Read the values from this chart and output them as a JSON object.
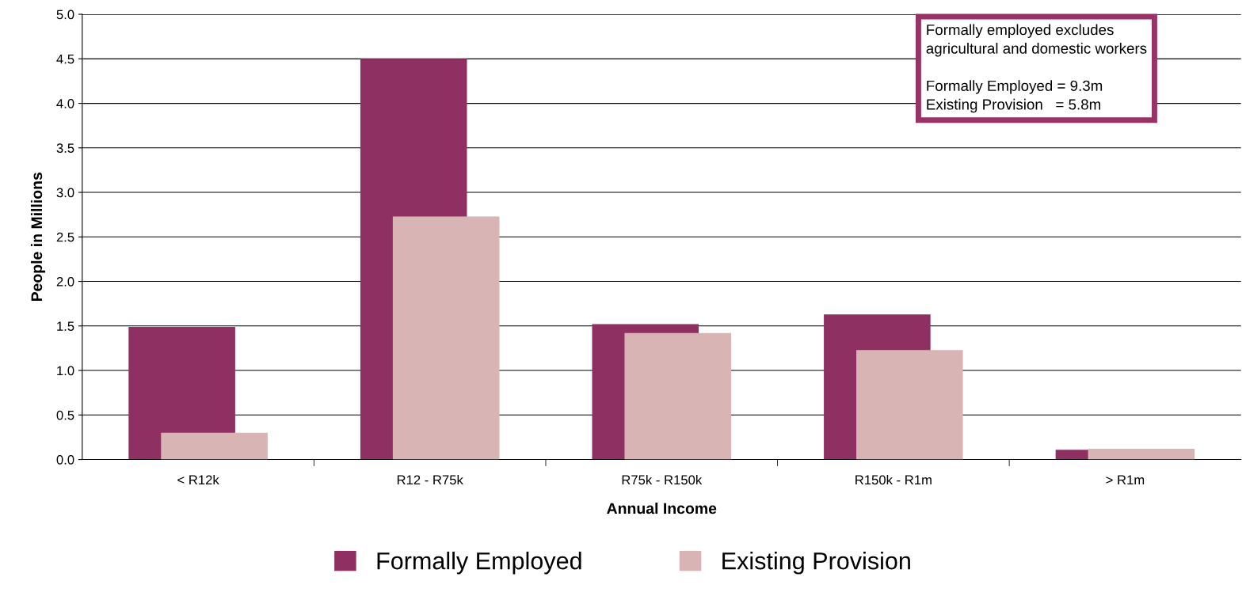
{
  "chart_data": {
    "type": "bar",
    "xlabel": "Annual Income",
    "ylabel": "People in Millions",
    "categories": [
      "< R12k",
      "R12 - R75k",
      "R75k - R150k",
      "R150k - R1m",
      "> R1m"
    ],
    "series": [
      {
        "name": "Formally Employed",
        "color": "#8e3062",
        "values": [
          1.49,
          4.5,
          1.52,
          1.63,
          0.11
        ]
      },
      {
        "name": "Existing Provision",
        "color": "#d8b4b4",
        "values": [
          0.3,
          2.73,
          1.42,
          1.23,
          0.12
        ]
      }
    ],
    "ylim": [
      0,
      5.0
    ],
    "yticks": [
      {
        "value": 0,
        "label": "0.0"
      },
      0.5,
      {
        "value": 1,
        "label": "1.0"
      },
      1.5,
      {
        "value": 2,
        "label": "2.0"
      },
      2.5,
      {
        "value": 3,
        "label": "3.0"
      },
      3.5,
      {
        "value": 4,
        "label": "4.0"
      },
      4.5,
      {
        "value": 5,
        "label": "5.0"
      }
    ],
    "grid": "y",
    "legend": "bottom",
    "annotations": [
      "Formally employed excludes\nagricultural and domestic workers\n\nFormally Employed = 9.3m\nExisting Provision   = 5.8m"
    ]
  }
}
